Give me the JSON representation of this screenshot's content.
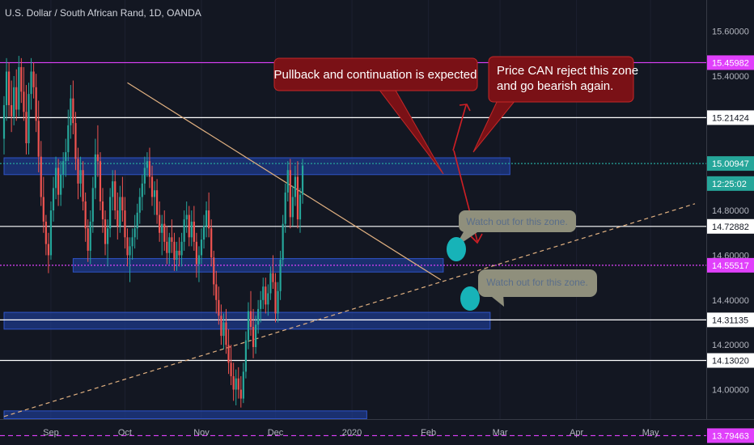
{
  "chart_data": {
    "type": "candlestick",
    "title": "U.S. Dollar / South African Rand, 1D, OANDA",
    "ylim": [
      13.76,
      15.66
    ],
    "x_ticks": [
      "Sep",
      "Oct",
      "Nov",
      "Dec",
      "2020",
      "Feb",
      "Mar",
      "Apr",
      "May"
    ],
    "x_tick_day": [
      19,
      49,
      80,
      110,
      141,
      172,
      201,
      232,
      262
    ],
    "y_ticks": [
      "15.60000",
      "15.40000",
      "14.80000",
      "14.60000",
      "14.40000",
      "14.20000",
      "14.00000"
    ],
    "price_labels": [
      {
        "text": "15.45982",
        "value": 15.45982,
        "color": "#e040fb"
      },
      {
        "text": "15.21424",
        "value": 15.21424,
        "color": "#ffffff"
      },
      {
        "text": "15.00947",
        "value": 15.00947,
        "color": "#26a69a"
      },
      {
        "text": "12:25:02",
        "value": 14.92,
        "color": "#26a69a"
      },
      {
        "text": "14.72882",
        "value": 14.72882,
        "color": "#ffffff"
      },
      {
        "text": "14.55517",
        "value": 14.55517,
        "color": "#e040fb"
      },
      {
        "text": "14.31135",
        "value": 14.31135,
        "color": "#ffffff"
      },
      {
        "text": "14.13020",
        "value": 14.1302,
        "color": "#ffffff"
      },
      {
        "text": "13.79463",
        "value": 13.79463,
        "color": "#e040fb"
      }
    ],
    "horizontal_lines": [
      {
        "value": 15.45982,
        "color": "#e040fb",
        "style": "solid"
      },
      {
        "value": 15.21424,
        "color": "#ffffff",
        "style": "solid"
      },
      {
        "value": 15.00947,
        "color": "#26a69a",
        "style": "dotted"
      },
      {
        "value": 14.72882,
        "color": "#ffffff",
        "style": "solid"
      },
      {
        "value": 14.55517,
        "color": "#e040fb",
        "style": "dotted"
      },
      {
        "value": 14.31135,
        "color": "#ffffff",
        "style": "solid"
      },
      {
        "value": 14.1302,
        "color": "#ffffff",
        "style": "solid"
      },
      {
        "value": 13.79463,
        "color": "#e040fb",
        "style": "dashed"
      }
    ],
    "zones": [
      {
        "day_start": 0,
        "day_end": 205,
        "high": 15.035,
        "low": 14.96
      },
      {
        "day_start": 28,
        "day_end": 178,
        "high": 14.585,
        "low": 14.525
      },
      {
        "day_start": 0,
        "day_end": 197,
        "high": 14.345,
        "low": 14.27
      },
      {
        "day_start": 0,
        "day_end": 147,
        "high": 13.905,
        "low": 13.87
      }
    ],
    "trendlines": [
      {
        "from": [
          50,
          15.37
        ],
        "to": [
          177,
          14.49
        ],
        "color": "#e0b080",
        "style": "solid"
      },
      {
        "from": [
          0,
          13.88
        ],
        "to": [
          280,
          14.83
        ],
        "color": "#e0b080",
        "style": "dashed"
      }
    ],
    "annotations": [
      {
        "text": "Pullback and continuation is expected",
        "kind": "callout"
      },
      {
        "text": "Price CAN reject this zone and go bearish again.",
        "kind": "callout"
      },
      {
        "text": "Watch out for this zone.",
        "kind": "note"
      },
      {
        "text": "Watch out for this zone.",
        "kind": "note"
      }
    ],
    "colors": {
      "up": "#26a69a",
      "down": "#ef5350",
      "background": "#131722",
      "zone": "#1e3a8a",
      "callout": "#7a1116",
      "note": "#8f8f7c",
      "marker": "#17b3b8"
    },
    "candles": [
      [
        15.12,
        15.31,
        15.05,
        15.27
      ],
      [
        15.27,
        15.48,
        15.2,
        15.42
      ],
      [
        15.42,
        15.46,
        15.22,
        15.27
      ],
      [
        15.27,
        15.38,
        15.15,
        15.22
      ],
      [
        15.22,
        15.4,
        15.18,
        15.35
      ],
      [
        15.35,
        15.43,
        15.2,
        15.25
      ],
      [
        15.25,
        15.49,
        15.22,
        15.44
      ],
      [
        15.44,
        15.48,
        15.28,
        15.33
      ],
      [
        15.33,
        15.44,
        15.2,
        15.24
      ],
      [
        15.24,
        15.36,
        15.05,
        15.1
      ],
      [
        15.1,
        15.37,
        15.05,
        15.32
      ],
      [
        15.32,
        15.48,
        15.25,
        15.42
      ],
      [
        15.42,
        15.46,
        15.3,
        15.35
      ],
      [
        15.35,
        15.41,
        15.15,
        15.2
      ],
      [
        15.2,
        15.29,
        14.97,
        15.04
      ],
      [
        15.04,
        15.11,
        14.82,
        14.86
      ],
      [
        14.86,
        14.95,
        14.7,
        14.75
      ],
      [
        14.75,
        14.78,
        14.6,
        14.65
      ],
      [
        14.65,
        14.7,
        14.52,
        14.6
      ],
      [
        14.6,
        14.84,
        14.58,
        14.8
      ],
      [
        14.8,
        14.95,
        14.75,
        14.9
      ],
      [
        14.9,
        15.04,
        14.85,
        14.99
      ],
      [
        14.99,
        15.03,
        14.82,
        14.87
      ],
      [
        14.87,
        15.02,
        14.82,
        14.96
      ],
      [
        14.96,
        15.06,
        14.9,
        15.02
      ],
      [
        15.02,
        15.12,
        14.95,
        15.06
      ],
      [
        15.06,
        15.25,
        15.02,
        15.18
      ],
      [
        15.18,
        15.36,
        15.12,
        15.3
      ],
      [
        15.3,
        15.38,
        15.14,
        15.19
      ],
      [
        15.19,
        15.24,
        14.98,
        15.03
      ],
      [
        15.03,
        15.08,
        14.85,
        14.92
      ],
      [
        14.92,
        15.04,
        14.86,
        14.98
      ],
      [
        14.98,
        15.02,
        14.8,
        14.84
      ],
      [
        14.84,
        14.88,
        14.66,
        14.72
      ],
      [
        14.72,
        14.76,
        14.57,
        14.62
      ],
      [
        14.62,
        14.8,
        14.56,
        14.75
      ],
      [
        14.75,
        14.95,
        14.7,
        14.9
      ],
      [
        14.9,
        15.12,
        14.85,
        15.05
      ],
      [
        15.05,
        15.18,
        14.95,
        15.02
      ],
      [
        15.02,
        15.06,
        14.8,
        14.84
      ],
      [
        14.84,
        14.9,
        14.7,
        14.76
      ],
      [
        14.76,
        14.8,
        14.6,
        14.65
      ],
      [
        14.65,
        14.76,
        14.55,
        14.72
      ],
      [
        14.72,
        14.9,
        14.68,
        14.86
      ],
      [
        14.86,
        14.98,
        14.8,
        14.93
      ],
      [
        14.93,
        14.98,
        14.76,
        14.8
      ],
      [
        14.8,
        14.88,
        14.67,
        14.73
      ],
      [
        14.73,
        14.91,
        14.7,
        14.86
      ],
      [
        14.86,
        14.95,
        14.75,
        14.8
      ],
      [
        14.8,
        14.86,
        14.63,
        14.68
      ],
      [
        14.68,
        14.72,
        14.55,
        14.6
      ],
      [
        14.6,
        14.68,
        14.48,
        14.64
      ],
      [
        14.64,
        14.72,
        14.58,
        14.68
      ],
      [
        14.68,
        14.78,
        14.63,
        14.72
      ],
      [
        14.72,
        14.83,
        14.67,
        14.79
      ],
      [
        14.79,
        14.9,
        14.74,
        14.86
      ],
      [
        14.86,
        14.96,
        14.8,
        14.92
      ],
      [
        14.92,
        15.04,
        14.87,
        14.99
      ],
      [
        14.99,
        15.06,
        14.95,
        15.02
      ],
      [
        15.02,
        15.08,
        14.9,
        14.95
      ],
      [
        14.95,
        15.0,
        14.82,
        14.86
      ],
      [
        14.86,
        14.93,
        14.78,
        14.89
      ],
      [
        14.89,
        14.94,
        14.74,
        14.78
      ],
      [
        14.78,
        14.84,
        14.66,
        14.7
      ],
      [
        14.7,
        14.78,
        14.6,
        14.74
      ],
      [
        14.74,
        14.8,
        14.62,
        14.66
      ],
      [
        14.66,
        14.73,
        14.56,
        14.61
      ],
      [
        14.61,
        14.7,
        14.56,
        14.68
      ],
      [
        14.68,
        14.76,
        14.61,
        14.66
      ],
      [
        14.66,
        14.7,
        14.53,
        14.58
      ],
      [
        14.58,
        14.66,
        14.53,
        14.62
      ],
      [
        14.62,
        14.68,
        14.55,
        14.6
      ],
      [
        14.6,
        14.7,
        14.55,
        14.66
      ],
      [
        14.66,
        14.8,
        14.62,
        14.76
      ],
      [
        14.76,
        14.84,
        14.7,
        14.78
      ],
      [
        14.78,
        14.82,
        14.64,
        14.68
      ],
      [
        14.68,
        14.8,
        14.64,
        14.75
      ],
      [
        14.75,
        14.82,
        14.62,
        14.66
      ],
      [
        14.66,
        14.7,
        14.5,
        14.56
      ],
      [
        14.56,
        14.64,
        14.48,
        14.6
      ],
      [
        14.6,
        14.72,
        14.56,
        14.67
      ],
      [
        14.67,
        14.78,
        14.63,
        14.73
      ],
      [
        14.73,
        14.84,
        14.68,
        14.8
      ],
      [
        14.8,
        14.88,
        14.68,
        14.72
      ],
      [
        14.72,
        14.76,
        14.55,
        14.59
      ],
      [
        14.59,
        14.62,
        14.42,
        14.47
      ],
      [
        14.47,
        14.53,
        14.34,
        14.4
      ],
      [
        14.4,
        14.46,
        14.29,
        14.33
      ],
      [
        14.33,
        14.38,
        14.2,
        14.24
      ],
      [
        14.24,
        14.34,
        14.18,
        14.3
      ],
      [
        14.3,
        14.36,
        14.16,
        14.2
      ],
      [
        14.2,
        14.27,
        14.07,
        14.12
      ],
      [
        14.12,
        14.2,
        14.02,
        14.06
      ],
      [
        14.06,
        14.12,
        13.95,
        14.0
      ],
      [
        14.0,
        14.09,
        13.93,
        14.05
      ],
      [
        14.05,
        14.1,
        13.96,
        14.0
      ],
      [
        14.0,
        14.06,
        13.92,
        13.96
      ],
      [
        13.96,
        14.12,
        13.94,
        14.08
      ],
      [
        14.08,
        14.26,
        14.05,
        14.22
      ],
      [
        14.22,
        14.39,
        14.18,
        14.35
      ],
      [
        14.35,
        14.44,
        14.24,
        14.28
      ],
      [
        14.28,
        14.36,
        14.14,
        14.19
      ],
      [
        14.19,
        14.33,
        14.16,
        14.29
      ],
      [
        14.29,
        14.4,
        14.25,
        14.36
      ],
      [
        14.36,
        14.44,
        14.3,
        14.4
      ],
      [
        14.4,
        14.5,
        14.36,
        14.46
      ],
      [
        14.46,
        14.5,
        14.34,
        14.38
      ],
      [
        14.38,
        14.47,
        14.33,
        14.43
      ],
      [
        14.43,
        14.55,
        14.4,
        14.52
      ],
      [
        14.52,
        14.6,
        14.45,
        14.48
      ],
      [
        14.48,
        14.52,
        14.3,
        14.34
      ],
      [
        14.34,
        14.48,
        14.3,
        14.44
      ],
      [
        14.44,
        14.62,
        14.4,
        14.58
      ],
      [
        14.58,
        14.78,
        14.55,
        14.74
      ],
      [
        14.74,
        14.92,
        14.7,
        14.88
      ],
      [
        14.88,
        15.02,
        14.84,
        14.98
      ],
      [
        14.98,
        15.03,
        14.72,
        14.77
      ],
      [
        14.77,
        14.91,
        14.73,
        14.86
      ],
      [
        14.86,
        15.0,
        14.82,
        14.95
      ],
      [
        14.95,
        15.02,
        14.72,
        14.76
      ],
      [
        14.76,
        14.9,
        14.7,
        14.87
      ],
      [
        14.87,
        15.03,
        14.83,
        15.0
      ]
    ]
  },
  "annotations": {
    "callout_main": "Pullback and continuation is expected",
    "callout_reject_line1": "Price CAN reject this zone",
    "callout_reject_line2": "and go bearish again.",
    "note_upper": "Watch out for this zone.",
    "note_lower": "Watch out for this zone."
  }
}
